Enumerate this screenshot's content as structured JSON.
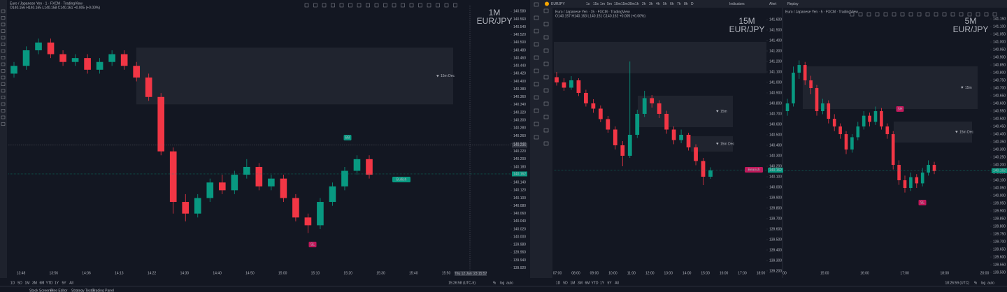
{
  "top_bar": {
    "symbol": "EURJPY",
    "intervals": [
      "1s",
      "15s",
      "1m",
      "5m",
      "10m",
      "15m",
      "30m",
      "1h",
      "2h",
      "3h",
      "4h",
      "5h",
      "6h",
      "7h",
      "8h",
      "D"
    ],
    "indicators": "Indicators",
    "alert": "Alert",
    "replay": "Replay"
  },
  "bottom_tabs": [
    "Stock Screener",
    "Pine Editor",
    "Strategy Tester",
    "Trading Panel"
  ],
  "panels": [
    {
      "title": "Euro / Japanese Yen · 1 · FXCM · TradingView",
      "ohlc_header": "O140.156 H140.165 L140.158 C140.161 +0.005 (+0.00%)",
      "big_label": "1M",
      "symbol_label": "EUR/JPY",
      "ylim": [
        139.905,
        140.595
      ],
      "yticks": [
        {
          "value": 140.58,
          "label": "140.580"
        },
        {
          "value": 140.56,
          "label": "140.560"
        },
        {
          "value": 140.54,
          "label": "140.540"
        },
        {
          "value": 140.52,
          "label": "140.520"
        },
        {
          "value": 140.5,
          "label": "140.500"
        },
        {
          "value": 140.48,
          "label": "140.480"
        },
        {
          "value": 140.46,
          "label": "140.460"
        },
        {
          "value": 140.44,
          "label": "140.440"
        },
        {
          "value": 140.42,
          "label": "140.420"
        },
        {
          "value": 140.4,
          "label": "140.400"
        },
        {
          "value": 140.38,
          "label": "140.380"
        },
        {
          "value": 140.36,
          "label": "140.360"
        },
        {
          "value": 140.34,
          "label": "140.340"
        },
        {
          "value": 140.32,
          "label": "140.320"
        },
        {
          "value": 140.3,
          "label": "140.300"
        },
        {
          "value": 140.28,
          "label": "140.280"
        },
        {
          "value": 140.26,
          "label": "140.260"
        },
        {
          "value": 140.24,
          "label": "140.240"
        },
        {
          "value": 140.22,
          "label": "140.220"
        },
        {
          "value": 140.2,
          "label": "140.200"
        },
        {
          "value": 140.18,
          "label": "140.180"
        },
        {
          "value": 140.16,
          "label": "140.160"
        },
        {
          "value": 140.14,
          "label": "140.140"
        },
        {
          "value": 140.12,
          "label": "140.120"
        },
        {
          "value": 140.1,
          "label": "140.100"
        },
        {
          "value": 140.08,
          "label": "140.080"
        },
        {
          "value": 140.06,
          "label": "140.060"
        },
        {
          "value": 140.04,
          "label": "140.040"
        },
        {
          "value": 140.02,
          "label": "140.020"
        },
        {
          "value": 140,
          "label": "140.000"
        },
        {
          "value": 139.98,
          "label": "139.980"
        },
        {
          "value": 139.96,
          "label": "139.960"
        },
        {
          "value": 139.94,
          "label": "139.940"
        },
        {
          "value": 139.92,
          "label": "139.920"
        }
      ],
      "xticks": [
        "13:48",
        "13:56",
        "14:06",
        "14:13",
        "14:22",
        "14:30",
        "14:40",
        "14:50",
        "15:00",
        "15:10",
        "15:20",
        "15:30",
        "15:40",
        "15:50"
      ],
      "crosshair_time": "Thu 12 Jan '23  15:57",
      "crosshair_price": 140.236,
      "last_price": 140.162,
      "up_color": "#089981",
      "down_color": "#f23645",
      "candles": [
        [
          140.42,
          140.45,
          140.41,
          140.44
        ],
        [
          140.44,
          140.49,
          140.43,
          140.48
        ],
        [
          140.48,
          140.51,
          140.47,
          140.5
        ],
        [
          140.5,
          140.51,
          140.46,
          140.47
        ],
        [
          140.47,
          140.48,
          140.44,
          140.45
        ],
        [
          140.45,
          140.47,
          140.44,
          140.46
        ],
        [
          140.46,
          140.47,
          140.42,
          140.43
        ],
        [
          140.43,
          140.46,
          140.42,
          140.45
        ],
        [
          140.45,
          140.48,
          140.44,
          140.47
        ],
        [
          140.47,
          140.48,
          140.43,
          140.44
        ],
        [
          140.44,
          140.45,
          140.4,
          140.41
        ],
        [
          140.41,
          140.42,
          140.35,
          140.36
        ],
        [
          140.36,
          140.37,
          140.21,
          140.22
        ],
        [
          140.22,
          140.23,
          140.06,
          140.09
        ],
        [
          140.09,
          140.11,
          140.04,
          140.06
        ],
        [
          140.06,
          140.11,
          140.05,
          140.1
        ],
        [
          140.1,
          140.15,
          140.09,
          140.14
        ],
        [
          140.14,
          140.16,
          140.11,
          140.12
        ],
        [
          140.12,
          140.17,
          140.11,
          140.16
        ],
        [
          140.16,
          140.2,
          140.15,
          140.18
        ],
        [
          140.18,
          140.19,
          140.12,
          140.13
        ],
        [
          140.13,
          140.16,
          140.12,
          140.15
        ],
        [
          140.15,
          140.16,
          140.09,
          140.1
        ],
        [
          140.1,
          140.11,
          140.04,
          140.05
        ],
        [
          140.05,
          140.06,
          140.01,
          140.03
        ],
        [
          140.03,
          140.1,
          140.02,
          140.09
        ],
        [
          140.09,
          140.14,
          140.08,
          140.13
        ],
        [
          140.13,
          140.18,
          140.12,
          140.17
        ],
        [
          140.17,
          140.21,
          140.16,
          140.2
        ],
        [
          140.2,
          140.21,
          140.15,
          140.16
        ]
      ],
      "zones": [
        {
          "label": "15m Dec",
          "top": 140.487,
          "bottom": 140.341
        }
      ],
      "markers": [
        {
          "text": "BB",
          "color": "#089981"
        },
        {
          "text": "Bullish",
          "color": "#089981"
        },
        {
          "text": "SL",
          "color": "#c2185b"
        }
      ],
      "range_buttons": [
        "1D",
        "5D",
        "1M",
        "3M",
        "6M",
        "YTD",
        "1Y",
        "5Y",
        "All"
      ],
      "clock": "15:26:58 (UTC-5)",
      "scale_buttons": [
        "%",
        "log",
        "auto"
      ]
    },
    {
      "title": "Euro / Japanese Yen · 15 · FXCM · TradingView",
      "ohlc_header": "O140.157 H140.163 L140.151 C140.162 +0.005 (+0.00%)",
      "big_label": "15M",
      "symbol_label": "EUR/JPY",
      "ylim": [
        139.173,
        141.64
      ],
      "yticks": [
        {
          "value": 141.6,
          "label": "141.600"
        },
        {
          "value": 141.5,
          "label": "141.500"
        },
        {
          "value": 141.4,
          "label": "141.400"
        },
        {
          "value": 141.3,
          "label": "141.300"
        },
        {
          "value": 141.2,
          "label": "141.200"
        },
        {
          "value": 141.1,
          "label": "141.100"
        },
        {
          "value": 141,
          "label": "141.000"
        },
        {
          "value": 140.9,
          "label": "140.900"
        },
        {
          "value": 140.8,
          "label": "140.800"
        },
        {
          "value": 140.7,
          "label": "140.700"
        },
        {
          "value": 140.6,
          "label": "140.600"
        },
        {
          "value": 140.5,
          "label": "140.500"
        },
        {
          "value": 140.4,
          "label": "140.400"
        },
        {
          "value": 140.3,
          "label": "140.300"
        },
        {
          "value": 140.2,
          "label": "140.200"
        },
        {
          "value": 140.1,
          "label": "140.100"
        },
        {
          "value": 140,
          "label": "140.000"
        },
        {
          "value": 139.9,
          "label": "139.900"
        },
        {
          "value": 139.8,
          "label": "139.800"
        },
        {
          "value": 139.7,
          "label": "139.700"
        },
        {
          "value": 139.6,
          "label": "139.600"
        },
        {
          "value": 139.5,
          "label": "139.500"
        },
        {
          "value": 139.4,
          "label": "139.400"
        },
        {
          "value": 139.3,
          "label": "139.300"
        },
        {
          "value": 139.2,
          "label": "139.200"
        }
      ],
      "xticks": [
        "07:00",
        "08:00",
        "09:00",
        "10:00",
        "11:00",
        "12:00",
        "13:00",
        "14:00",
        "15:00",
        "16:00",
        "17:00",
        "18:00"
      ],
      "last_price": 140.162,
      "up_color": "#089981",
      "down_color": "#f23645",
      "candles": [
        [
          141.05,
          141.1,
          140.97,
          141
        ],
        [
          141,
          141.04,
          140.92,
          140.95
        ],
        [
          140.95,
          141.06,
          140.93,
          141.02
        ],
        [
          141.02,
          141.04,
          140.87,
          140.9
        ],
        [
          140.9,
          140.93,
          140.77,
          140.8
        ],
        [
          140.8,
          140.84,
          140.71,
          140.75
        ],
        [
          140.75,
          140.78,
          140.62,
          140.65
        ],
        [
          140.65,
          140.68,
          140.52,
          140.55
        ],
        [
          140.55,
          140.58,
          140.36,
          140.4
        ],
        [
          140.4,
          140.44,
          140.2,
          140.3
        ],
        [
          140.3,
          141.2,
          140.28,
          140.5
        ],
        [
          140.5,
          140.74,
          140.47,
          140.7
        ],
        [
          140.7,
          140.92,
          140.67,
          140.85
        ],
        [
          140.85,
          140.88,
          140.76,
          140.8
        ],
        [
          140.8,
          140.83,
          140.66,
          140.7
        ],
        [
          140.7,
          140.73,
          140.51,
          140.55
        ],
        [
          140.55,
          140.58,
          140.41,
          140.45
        ],
        [
          140.45,
          140.55,
          140.42,
          140.5
        ],
        [
          140.5,
          140.52,
          140.35,
          140.38
        ],
        [
          140.38,
          140.41,
          140.21,
          140.25
        ],
        [
          140.25,
          140.28,
          140.02,
          140.1
        ],
        [
          140.1,
          140.19,
          140.08,
          140.16
        ]
      ],
      "zones": [
        {
          "top": 141.387,
          "bottom": 141.087
        },
        {
          "label": "15m",
          "top": 140.873,
          "bottom": 140.573
        },
        {
          "label": "15m Dec",
          "top": 140.487,
          "bottom": 140.34
        }
      ],
      "markers": [
        {
          "text": "Bearish",
          "color": "#c2185b"
        }
      ],
      "range_buttons": [
        "1D",
        "5D",
        "1M",
        "3M",
        "6M",
        "YTD",
        "1Y",
        "5Y",
        "All"
      ]
    },
    {
      "title": "Euro / Japanese Yen · 5 · FXCM · TradingView",
      "big_label": "5M",
      "symbol_label": "EUR/JPY",
      "ylim": [
        139.491,
        141.173
      ],
      "yticks": [
        {
          "value": 141.15,
          "label": "141.150"
        },
        {
          "value": 141.1,
          "label": "141.100"
        },
        {
          "value": 141.05,
          "label": "141.050"
        },
        {
          "value": 141,
          "label": "141.000"
        },
        {
          "value": 140.95,
          "label": "140.950"
        },
        {
          "value": 140.9,
          "label": "140.900"
        },
        {
          "value": 140.85,
          "label": "140.850"
        },
        {
          "value": 140.8,
          "label": "140.800"
        },
        {
          "value": 140.75,
          "label": "140.750"
        },
        {
          "value": 140.7,
          "label": "140.700"
        },
        {
          "value": 140.65,
          "label": "140.650"
        },
        {
          "value": 140.6,
          "label": "140.600"
        },
        {
          "value": 140.55,
          "label": "140.550"
        },
        {
          "value": 140.5,
          "label": "140.500"
        },
        {
          "value": 140.45,
          "label": "140.450"
        },
        {
          "value": 140.4,
          "label": "140.400"
        },
        {
          "value": 140.35,
          "label": "140.350"
        },
        {
          "value": 140.3,
          "label": "140.300"
        },
        {
          "value": 140.25,
          "label": "140.250"
        },
        {
          "value": 140.2,
          "label": "140.200"
        },
        {
          "value": 140.15,
          "label": "140.150"
        },
        {
          "value": 140.1,
          "label": "140.100"
        },
        {
          "value": 140.05,
          "label": "140.050"
        },
        {
          "value": 140,
          "label": "140.000"
        },
        {
          "value": 139.95,
          "label": "139.950"
        },
        {
          "value": 139.9,
          "label": "139.900"
        },
        {
          "value": 139.85,
          "label": "139.850"
        },
        {
          "value": 139.8,
          "label": "139.800"
        },
        {
          "value": 139.75,
          "label": "139.750"
        },
        {
          "value": 139.7,
          "label": "139.700"
        },
        {
          "value": 139.65,
          "label": "139.650"
        },
        {
          "value": 139.6,
          "label": "139.600"
        },
        {
          "value": 139.55,
          "label": "139.550"
        },
        {
          "value": 139.5,
          "label": "139.500"
        }
      ],
      "xticks": [
        "00",
        "15:00",
        "16:00",
        "17:00",
        "18:00",
        "20:00"
      ],
      "last_price": 140.162,
      "up_color": "#089981",
      "down_color": "#f23645",
      "candles": [
        [
          140.55,
          140.63,
          140.52,
          140.6
        ],
        [
          140.6,
          140.84,
          140.58,
          140.8
        ],
        [
          140.8,
          140.88,
          140.76,
          140.85
        ],
        [
          140.85,
          140.87,
          140.72,
          140.75
        ],
        [
          140.75,
          140.78,
          140.66,
          140.7
        ],
        [
          140.7,
          140.72,
          140.52,
          140.55
        ],
        [
          140.55,
          140.63,
          140.53,
          140.6
        ],
        [
          140.6,
          140.62,
          140.47,
          140.5
        ],
        [
          140.5,
          140.53,
          140.42,
          140.45
        ],
        [
          140.45,
          140.47,
          140.37,
          140.4
        ],
        [
          140.4,
          140.42,
          140.27,
          140.3
        ],
        [
          140.3,
          140.4,
          140.28,
          140.38
        ],
        [
          140.38,
          140.48,
          140.36,
          140.45
        ],
        [
          140.45,
          140.55,
          140.43,
          140.52
        ],
        [
          140.52,
          140.54,
          140.45,
          140.48
        ],
        [
          140.48,
          140.58,
          140.46,
          140.55
        ],
        [
          140.55,
          140.57,
          140.43,
          140.45
        ],
        [
          140.45,
          140.47,
          140.37,
          140.4
        ],
        [
          140.4,
          140.42,
          140.17,
          140.2
        ],
        [
          140.2,
          140.23,
          140.07,
          140.1
        ],
        [
          140.1,
          140.13,
          140.02,
          140.05
        ],
        [
          140.05,
          140.15,
          140.03,
          140.12
        ],
        [
          140.12,
          140.14,
          140.05,
          140.08
        ],
        [
          140.08,
          140.18,
          140.06,
          140.15
        ],
        [
          140.15,
          140.23,
          140.13,
          140.2
        ],
        [
          140.2,
          140.22,
          140.14,
          140.16
        ]
      ],
      "zones": [
        {
          "label": "15m",
          "top": 140.841,
          "bottom": 140.564
        },
        {
          "label": "15m Dec",
          "top": 140.482,
          "bottom": 140.345
        }
      ],
      "markers": [
        {
          "text": "SH",
          "color": "#c2185b"
        },
        {
          "text": "SL",
          "color": "#c2185b"
        }
      ],
      "clock": "18:26:59 (UTC)",
      "scale_buttons": [
        "%",
        "log",
        "auto"
      ]
    }
  ]
}
